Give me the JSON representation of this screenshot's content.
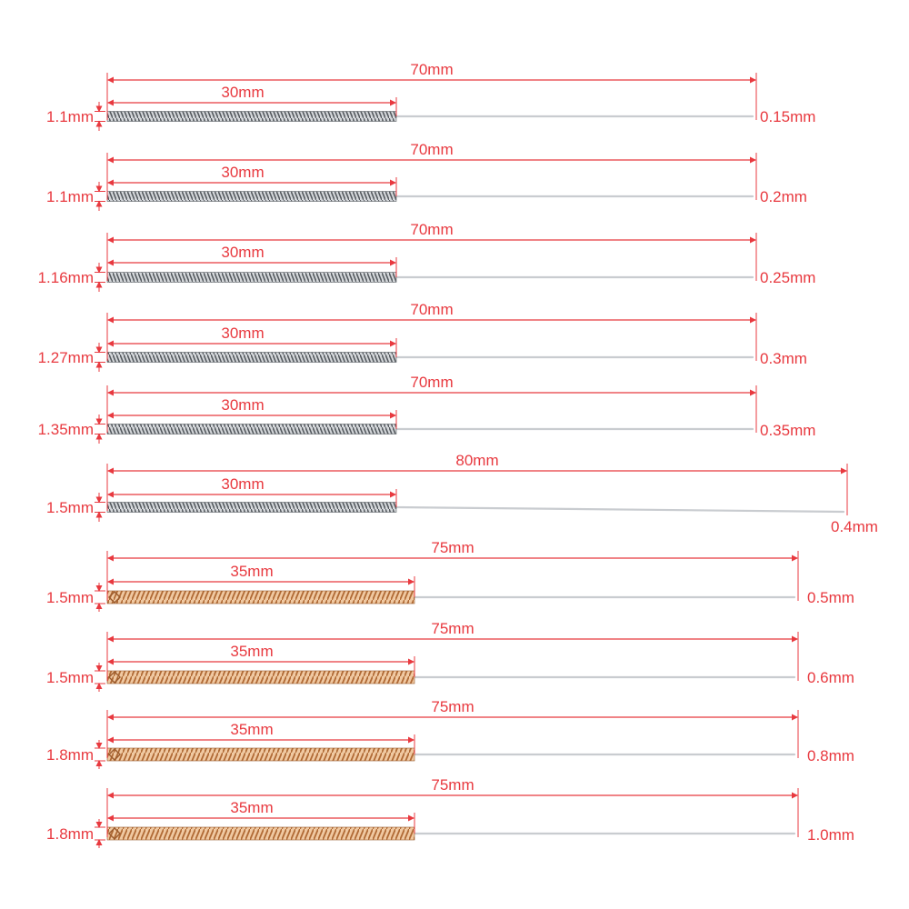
{
  "colors": {
    "dimension": "#e8393f",
    "label": "#e8393f",
    "handle_silver": "#9aa0a6",
    "handle_silver_dark": "#5c6166",
    "handle_copper": "#d69c6c",
    "handle_copper_dark": "#9a5a2c",
    "shaft": "#c9ccd0"
  },
  "needles": [
    {
      "total_length": "70mm",
      "handle_length": "30mm",
      "handle_diameter": "1.1mm",
      "tip_diameter": "0.15mm",
      "handle_type": "silver-spiral",
      "tail_icon": "none"
    },
    {
      "total_length": "70mm",
      "handle_length": "30mm",
      "handle_diameter": "1.1mm",
      "tip_diameter": "0.2mm",
      "handle_type": "silver-spiral",
      "tail_icon": "none"
    },
    {
      "total_length": "70mm",
      "handle_length": "30mm",
      "handle_diameter": "1.16mm",
      "tip_diameter": "0.25mm",
      "handle_type": "silver-spiral",
      "tail_icon": "none"
    },
    {
      "total_length": "70mm",
      "handle_length": "30mm",
      "handle_diameter": "1.27mm",
      "tip_diameter": "0.3mm",
      "handle_type": "silver-spiral",
      "tail_icon": "none"
    },
    {
      "total_length": "70mm",
      "handle_length": "30mm",
      "handle_diameter": "1.35mm",
      "tip_diameter": "0.35mm",
      "handle_type": "silver-spiral",
      "tail_icon": "none"
    },
    {
      "total_length": "80mm",
      "handle_length": "30mm",
      "handle_diameter": "1.5mm",
      "tip_diameter": "0.4mm",
      "handle_type": "silver-spiral",
      "tail_icon": "none"
    },
    {
      "total_length": "75mm",
      "handle_length": "35mm",
      "handle_diameter": "1.5mm",
      "tip_diameter": "0.5mm",
      "handle_type": "copper-spiral",
      "tail_icon": "knot-loop-icon"
    },
    {
      "total_length": "75mm",
      "handle_length": "35mm",
      "handle_diameter": "1.5mm",
      "tip_diameter": "0.6mm",
      "handle_type": "copper-spiral",
      "tail_icon": "knot-loop-icon"
    },
    {
      "total_length": "75mm",
      "handle_length": "35mm",
      "handle_diameter": "1.8mm",
      "tip_diameter": "0.8mm",
      "handle_type": "copper-spiral",
      "tail_icon": "knot-loop-icon"
    },
    {
      "total_length": "75mm",
      "handle_length": "35mm",
      "handle_diameter": "1.8mm",
      "tip_diameter": "1.0mm",
      "handle_type": "copper-spiral",
      "tail_icon": "knot-loop-icon"
    }
  ]
}
